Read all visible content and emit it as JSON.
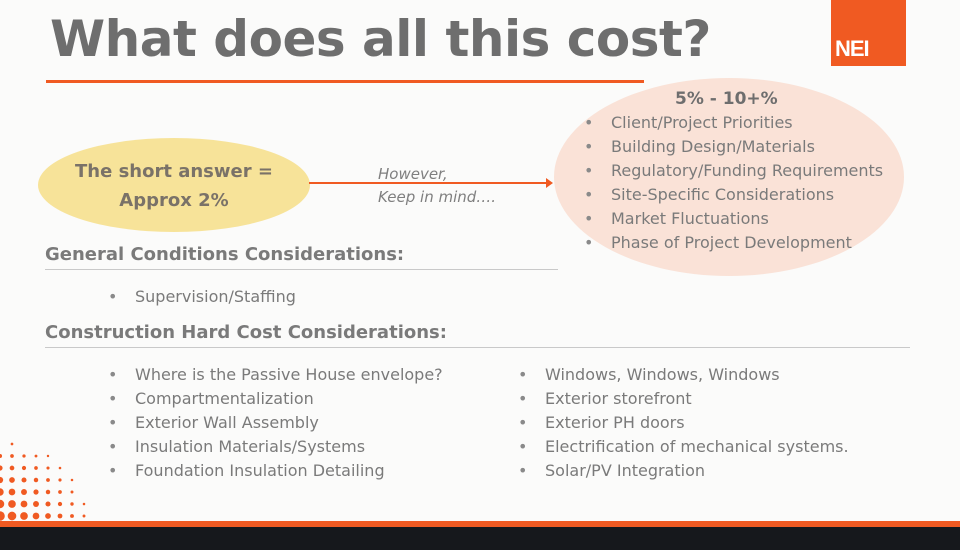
{
  "title": "What does all this cost?",
  "logo": {
    "text": "NEI",
    "color": "#f05a22"
  },
  "short_answer": {
    "line1": "The short answer =",
    "line2": "Approx 2%"
  },
  "connector": {
    "line1": "However,",
    "line2": "Keep in mind…."
  },
  "range": {
    "label": "5% - 10+%",
    "items": [
      "Client/Project Priorities",
      "Building Design/Materials",
      "Regulatory/Funding Requirements",
      "Site-Specific Considerations",
      "Market Fluctuations",
      "Phase of Project Development"
    ]
  },
  "general_conditions": {
    "heading": "General Conditions Considerations:",
    "items": [
      "Supervision/Staffing"
    ]
  },
  "hard_costs": {
    "heading": "Construction Hard Cost Considerations:",
    "left_items": [
      "Where is the Passive House envelope?",
      "Compartmentalization",
      "Exterior Wall Assembly",
      "Insulation Materials/Systems",
      "Foundation Insulation Detailing"
    ],
    "right_items": [
      "Windows, Windows, Windows",
      "Exterior storefront",
      "Exterior PH doors",
      "Electrification of mechanical systems.",
      "Solar/PV Integration"
    ]
  },
  "colors": {
    "accent": "#f05a22",
    "short_answer_fill": "#f6e08e",
    "range_fill": "#f9ddd0"
  }
}
